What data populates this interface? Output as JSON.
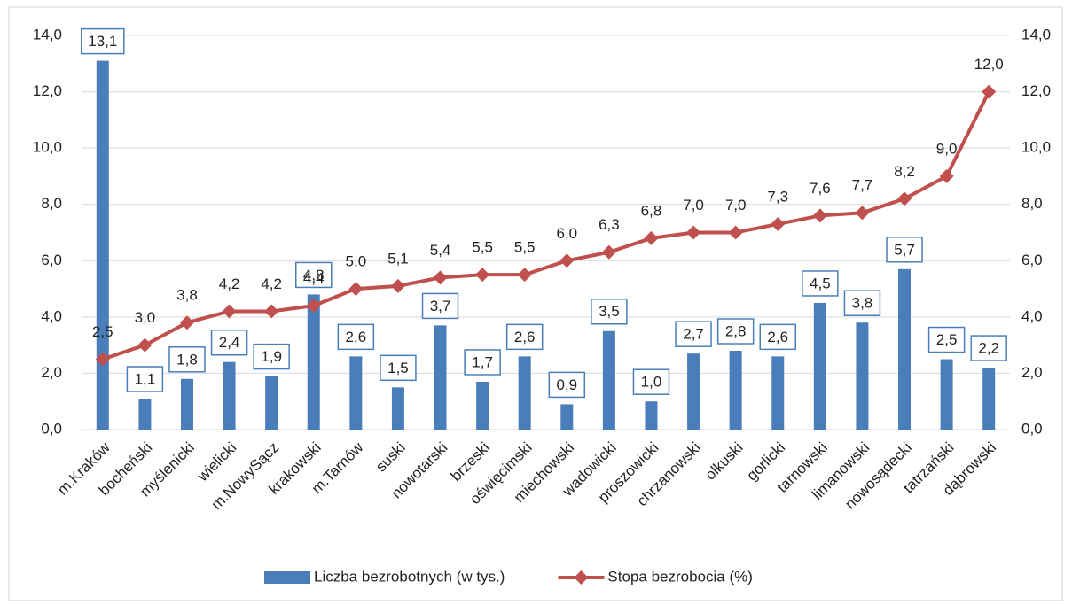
{
  "chart_data": {
    "type": "combo",
    "categories": [
      "m.Kraków",
      "bocheński",
      "myślenicki",
      "wielicki",
      "m.NowySącz",
      "krakowski",
      "m.Tarnów",
      "suski",
      "nowotarski",
      "brzeski",
      "oświęcimski",
      "miechowski",
      "wadowicki",
      "proszowicki",
      "chrzanowski",
      "olkuski",
      "gorlicki",
      "tarnowski",
      "limanowski",
      "nowosądecki",
      "tatrzański",
      "dąbrowski"
    ],
    "series": [
      {
        "name": "Liczba bezrobotnych (w tys.)",
        "type": "bar",
        "color": "#4a7ebb",
        "values": [
          13.1,
          1.1,
          1.8,
          2.4,
          1.9,
          4.8,
          2.6,
          1.5,
          3.7,
          1.7,
          2.6,
          0.9,
          3.5,
          1.0,
          2.7,
          2.8,
          2.6,
          4.5,
          3.8,
          5.7,
          2.5,
          2.2
        ],
        "value_labels": [
          "13,1",
          "1,1",
          "1,8",
          "2,4",
          "1,9",
          "4,8",
          "2,6",
          "1,5",
          "3,7",
          "1,7",
          "2,6",
          "0,9",
          "3,5",
          "1,0",
          "2,7",
          "2,8",
          "2,6",
          "4,5",
          "3,8",
          "5,7",
          "2,5",
          "2,2"
        ]
      },
      {
        "name": "Stopa bezrobocia (%)",
        "type": "line",
        "axis": "y2",
        "color": "#c0504d",
        "values": [
          2.5,
          3.0,
          3.8,
          4.2,
          4.2,
          4.4,
          5.0,
          5.1,
          5.4,
          5.5,
          5.5,
          6.0,
          6.3,
          6.8,
          7.0,
          7.0,
          7.3,
          7.6,
          7.7,
          8.2,
          9.0,
          12.0
        ],
        "value_labels": [
          "2,5",
          "3,0",
          "3,8",
          "4,2",
          "4,2",
          "4,4",
          "5,0",
          "5,1",
          "5,4",
          "5,5",
          "5,5",
          "6,0",
          "6,3",
          "6,8",
          "7,0",
          "7,0",
          "7,3",
          "7,6",
          "7,7",
          "8,2",
          "9,0",
          "12,0"
        ]
      }
    ],
    "ylim": [
      0,
      14
    ],
    "yticks": [
      {
        "value": 0,
        "label": "0,0"
      },
      {
        "value": 2,
        "label": "2,0"
      },
      {
        "value": 4,
        "label": "4,0"
      },
      {
        "value": 6,
        "label": "6,0"
      },
      {
        "value": 8,
        "label": "8,0"
      },
      {
        "value": 10,
        "label": "10,0"
      },
      {
        "value": 12,
        "label": "12,0"
      },
      {
        "value": 14,
        "label": "14,0"
      }
    ],
    "y2lim": [
      0,
      14
    ],
    "y2ticks": [
      {
        "value": 0,
        "label": "0,0"
      },
      {
        "value": 2,
        "label": "2,0"
      },
      {
        "value": 4,
        "label": "4,0"
      },
      {
        "value": 6,
        "label": "6,0"
      },
      {
        "value": 8,
        "label": "8,0"
      },
      {
        "value": 10,
        "label": "10,0"
      },
      {
        "value": 12,
        "label": "12,0"
      },
      {
        "value": 14,
        "label": "14,0"
      }
    ],
    "grid": true,
    "legend": "bottom"
  }
}
